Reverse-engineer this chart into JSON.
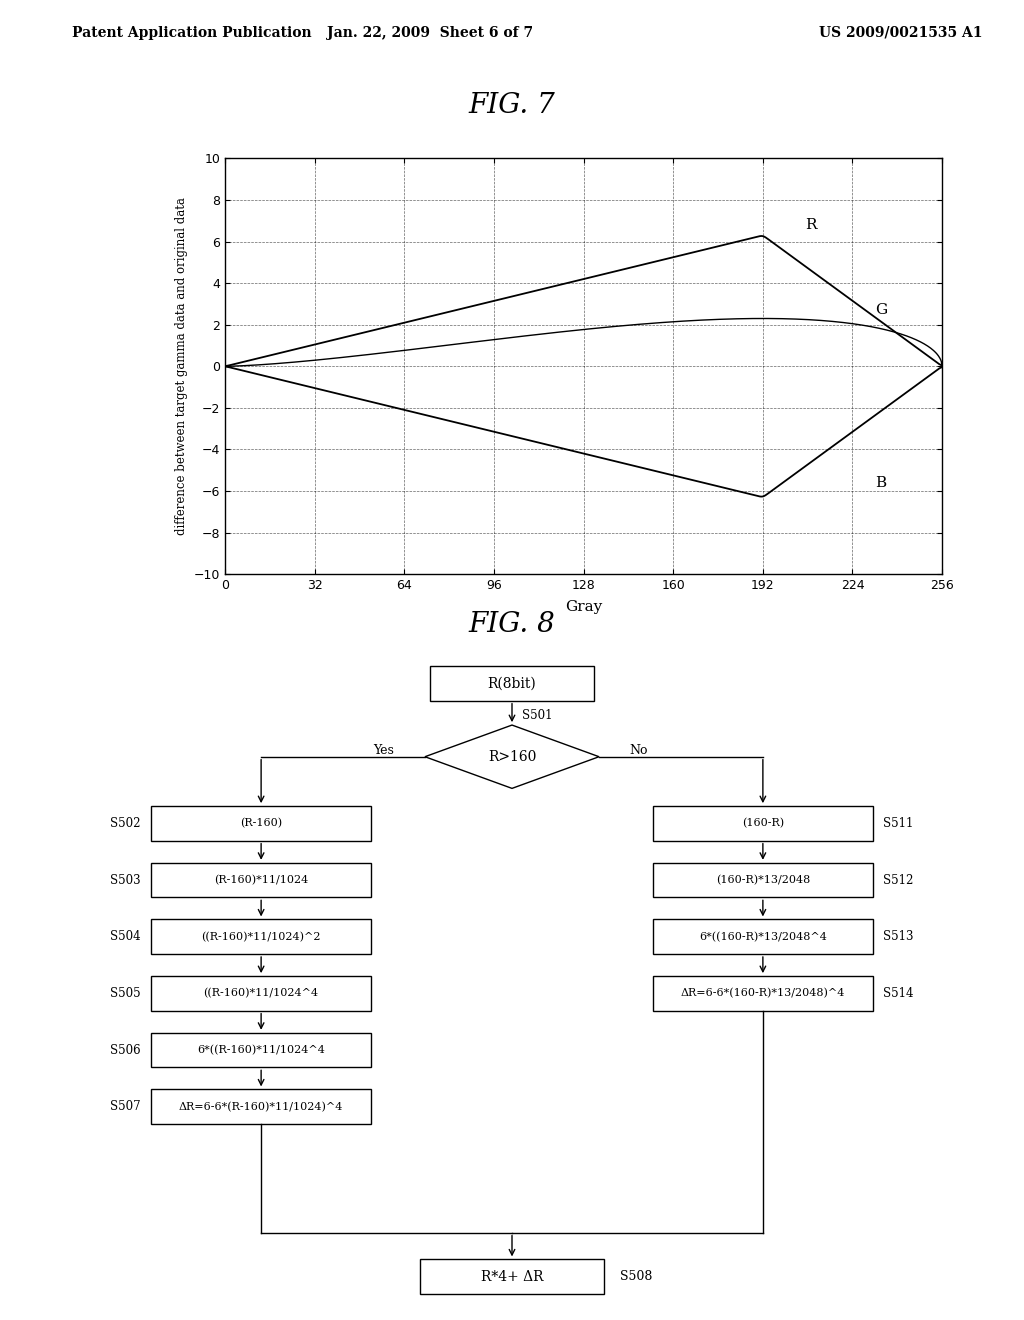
{
  "title_text": "FIG. 7",
  "fig8_title": "FIG. 8",
  "header_left": "Patent Application Publication",
  "header_mid": "Jan. 22, 2009  Sheet 6 of 7",
  "header_right": "US 2009/0021535 A1",
  "graph": {
    "xlabel": "Gray",
    "ylabel": "difference between target gamma data and original data",
    "xlim": [
      0,
      256
    ],
    "ylim": [
      -10,
      10
    ],
    "xticks": [
      0,
      32,
      64,
      96,
      128,
      160,
      192,
      224,
      256
    ],
    "yticks": [
      -10,
      -8,
      -6,
      -4,
      -2,
      0,
      2,
      4,
      6,
      8,
      10
    ],
    "R_label": "R",
    "G_label": "G",
    "B_label": "B"
  },
  "flowchart": {
    "start_box": "R(8bit)",
    "diamond_label": "R>160",
    "diamond_id": "S501",
    "yes_label": "Yes",
    "no_label": "No",
    "left_steps": [
      {
        "id": "S502",
        "text": "(R-160)"
      },
      {
        "id": "S503",
        "text": "(R-160)*11/1024"
      },
      {
        "id": "S504",
        "text": "((R-160)*11/1024)^2"
      },
      {
        "id": "S505",
        "text": "((R-160)*11/1024^4"
      },
      {
        "id": "S506",
        "text": "6*((R-160)*11/1024^4"
      },
      {
        "id": "S507",
        "text": "ΔR=6-6*(R-160)*11/1024)^4"
      }
    ],
    "right_steps": [
      {
        "id": "S511",
        "text": "(160-R)"
      },
      {
        "id": "S512",
        "text": "(160-R)*13/2048"
      },
      {
        "id": "S513",
        "text": "6*((160-R)*13/2048^4"
      },
      {
        "id": "S514",
        "text": "ΔR=6-6*(160-R)*13/2048)^4"
      }
    ],
    "end_box": "R*4+ ΔR",
    "end_id": "S508"
  },
  "bg_color": "#ffffff",
  "line_color": "#000000",
  "text_color": "#000000"
}
